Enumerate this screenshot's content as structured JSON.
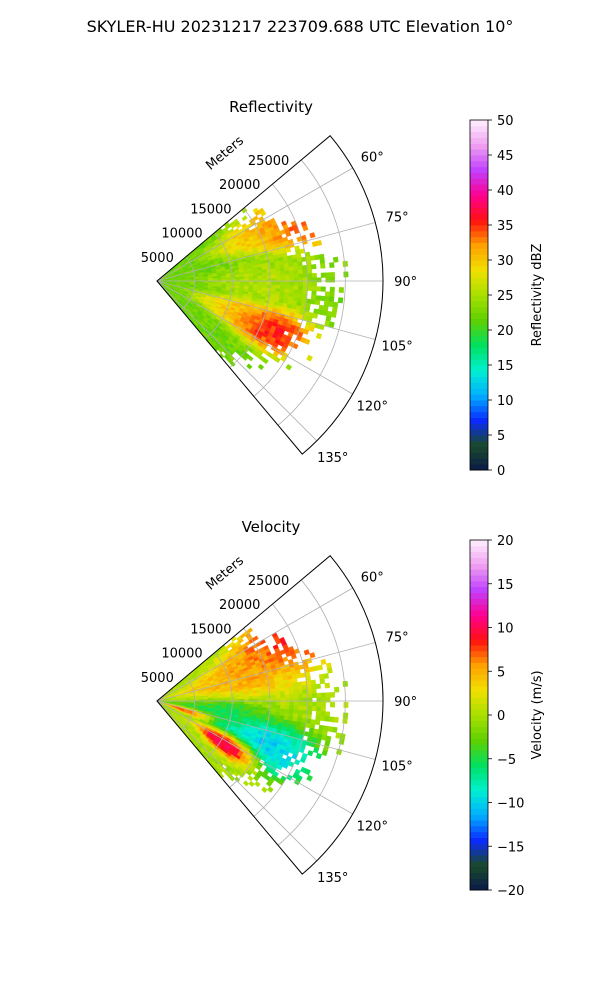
{
  "suptitle": "SKYLER-HU  20231217  223709.688 UTC Elevation 10°",
  "chart_data": [
    {
      "type": "heatmap",
      "projection": "polar-sector",
      "title": "Reflectivity",
      "r_label": "Meters",
      "r_ticks": [
        5000,
        10000,
        15000,
        20000,
        25000
      ],
      "r_tick_labels": [
        "5000",
        "10000",
        "15000",
        "20000",
        "25000"
      ],
      "r_max": 30000,
      "theta_range_deg": [
        50,
        140
      ],
      "theta_ticks_deg": [
        60,
        75,
        90,
        105,
        120,
        135
      ],
      "theta_tick_labels": [
        "60°",
        "75°",
        "90°",
        "105°",
        "120°",
        "135°"
      ],
      "grid": true,
      "colorbar": {
        "label": "Reflectivity dBZ",
        "min": 0,
        "max": 50,
        "ticks": [
          0,
          5,
          10,
          15,
          20,
          25,
          30,
          35,
          40,
          45,
          50
        ],
        "tick_labels": [
          "0",
          "5",
          "10",
          "15",
          "20",
          "25",
          "30",
          "35",
          "40",
          "45",
          "50"
        ],
        "stops": [
          "#0a1a4a",
          "#1a4a2a",
          "#0a2aff",
          "#00b0ff",
          "#00f0d0",
          "#00e060",
          "#60d000",
          "#a8e000",
          "#f0e000",
          "#ffa000",
          "#ff1010",
          "#ff0090",
          "#c040ff",
          "#f0a0f0",
          "#fff0ff"
        ]
      },
      "field": {
        "background": 22,
        "max_range_m": 26000,
        "edge_range_m": 24000,
        "cells": [
          {
            "theta": 65,
            "r": 21000,
            "value": 37,
            "spread": 8
          },
          {
            "theta": 63,
            "r": 15000,
            "value": 31,
            "spread": 7
          },
          {
            "theta": 112,
            "r": 15500,
            "value": 38,
            "spread": 7
          },
          {
            "theta": 110,
            "r": 11000,
            "value": 30,
            "spread": 6
          },
          {
            "theta": 90,
            "r": 14000,
            "value": 26,
            "spread": 8
          }
        ]
      }
    },
    {
      "type": "heatmap",
      "projection": "polar-sector",
      "title": "Velocity",
      "r_label": "Meters",
      "r_ticks": [
        5000,
        10000,
        15000,
        20000,
        25000
      ],
      "r_tick_labels": [
        "5000",
        "10000",
        "15000",
        "20000",
        "25000"
      ],
      "r_max": 30000,
      "theta_range_deg": [
        50,
        140
      ],
      "theta_ticks_deg": [
        60,
        75,
        90,
        105,
        120,
        135
      ],
      "theta_tick_labels": [
        "60°",
        "75°",
        "90°",
        "105°",
        "120°",
        "135°"
      ],
      "grid": true,
      "colorbar": {
        "label": "Velocity (m/s)",
        "min": -20,
        "max": 20,
        "ticks": [
          -20,
          -15,
          -10,
          -5,
          0,
          5,
          10,
          15,
          20
        ],
        "tick_labels": [
          "−20",
          "−15",
          "−10",
          "−5",
          "0",
          "5",
          "10",
          "15",
          "20"
        ],
        "stops": [
          "#0a1a4a",
          "#1a4a2a",
          "#0a2aff",
          "#00b0ff",
          "#00f0d0",
          "#00e060",
          "#60d000",
          "#a8e000",
          "#f0e000",
          "#ffa000",
          "#ff1010",
          "#ff0090",
          "#c040ff",
          "#f0a0f0",
          "#fff0ff"
        ]
      },
      "field": {
        "background": 0,
        "max_range_m": 26000,
        "edge_range_m": 24000,
        "cells": [
          {
            "theta": 62,
            "r": 20000,
            "value": 10,
            "spread": 9
          },
          {
            "theta": 72,
            "r": 12000,
            "value": 6,
            "spread": 9
          },
          {
            "theta": 100,
            "r": 8000,
            "value": -6,
            "spread": 7
          },
          {
            "theta": 112,
            "r": 15000,
            "value": -12,
            "spread": 8
          },
          {
            "theta": 120,
            "r": 11000,
            "value": 15,
            "spread": 5
          },
          {
            "theta": 107,
            "r": 4000,
            "value": 10,
            "spread": 4
          }
        ]
      }
    }
  ]
}
